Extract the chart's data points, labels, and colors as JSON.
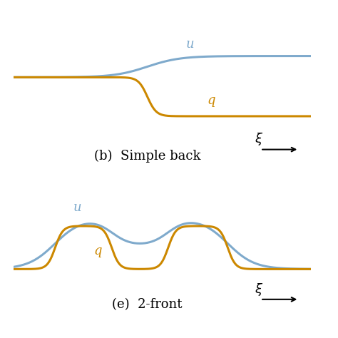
{
  "blue_color": "#7faacc",
  "orange_color": "#cc8800",
  "background": "#ffffff",
  "title_b": "(b)  Simple back",
  "title_e": "(e)  2-front",
  "label_u": "u",
  "label_q": "q",
  "linewidth": 2.2,
  "figsize": [
    4.74,
    4.74
  ],
  "dpi": 100
}
